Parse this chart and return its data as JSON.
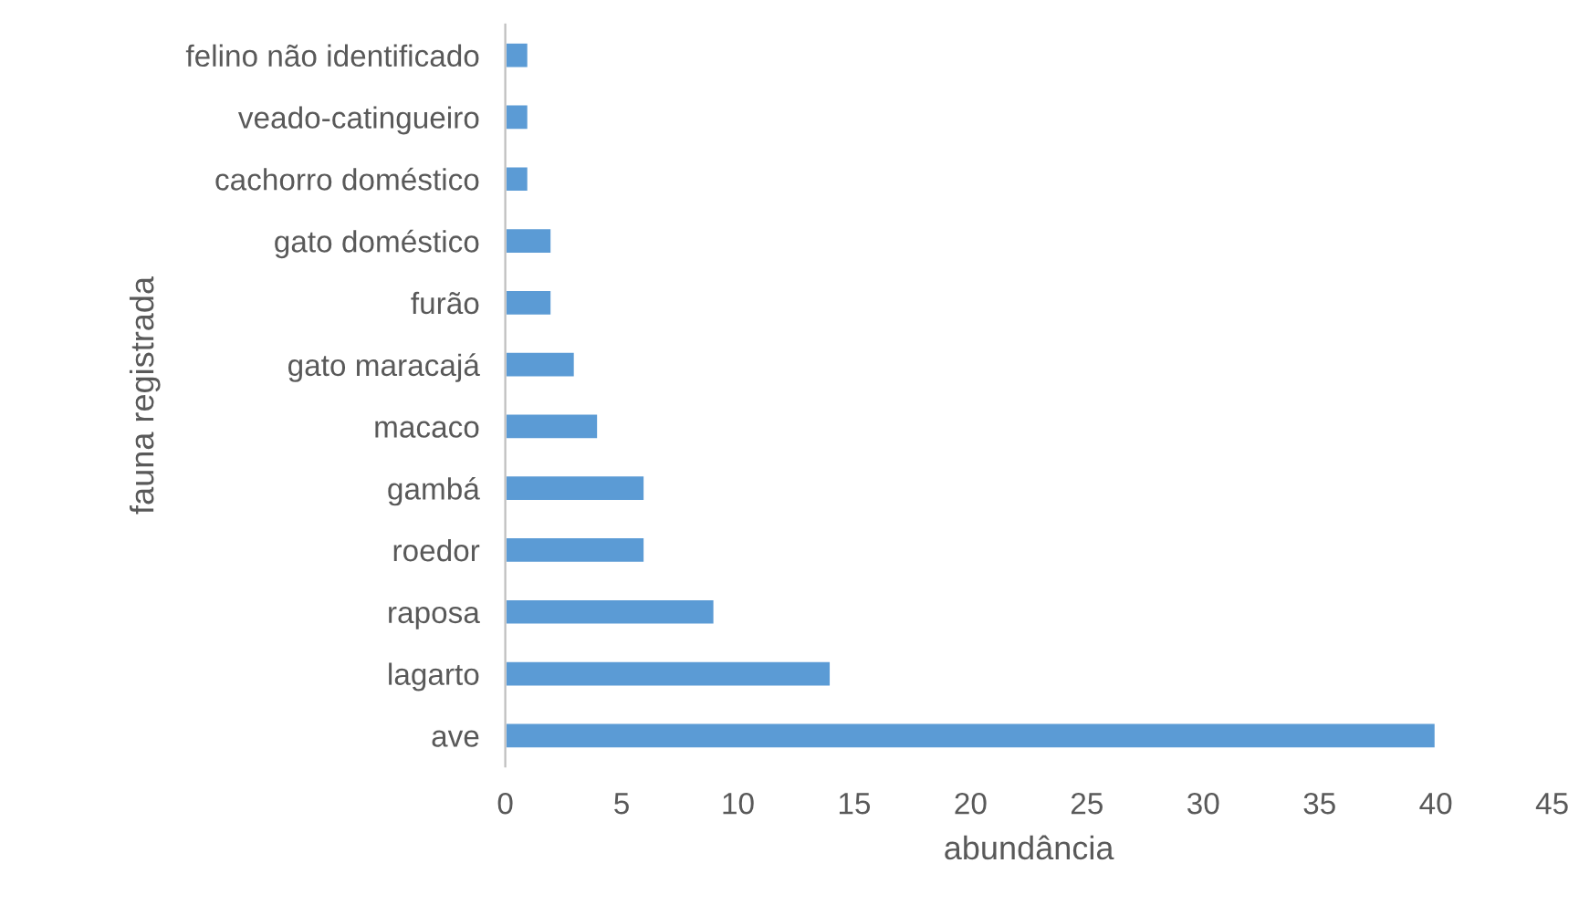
{
  "chart_data": {
    "type": "bar",
    "orientation": "horizontal",
    "xlabel": "abundância",
    "ylabel": "fauna registrada",
    "categories": [
      "felino não identificado",
      "veado-catingueiro",
      "cachorro doméstico",
      "gato doméstico",
      "furão",
      "gato maracajá",
      "macaco",
      "gambá",
      "roedor",
      "raposa",
      "lagarto",
      "ave"
    ],
    "values": [
      1,
      1,
      1,
      2,
      2,
      3,
      4,
      6,
      6,
      9,
      14,
      40
    ],
    "color": "#5b9bd5",
    "xlim": [
      0,
      45
    ],
    "xticks": [
      0,
      5,
      10,
      15,
      20,
      25,
      30,
      35,
      40,
      45
    ],
    "grid": false,
    "legend": false
  }
}
